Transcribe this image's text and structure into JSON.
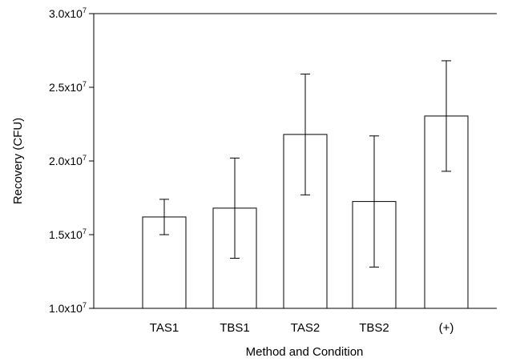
{
  "chart_data": {
    "type": "bar",
    "xlabel": "Method and Condition",
    "ylabel": "Recovery (CFU)",
    "ylim": [
      10000000,
      30000000
    ],
    "yticks": [
      {
        "value": 10000000,
        "mantissa": "1.0x10",
        "exp": "7"
      },
      {
        "value": 15000000,
        "mantissa": "1.5x10",
        "exp": "7"
      },
      {
        "value": 20000000,
        "mantissa": "2.0x10",
        "exp": "7"
      },
      {
        "value": 25000000,
        "mantissa": "2.5x10",
        "exp": "7"
      },
      {
        "value": 30000000,
        "mantissa": "3.0x10",
        "exp": "7"
      }
    ],
    "categories": [
      "TAS1",
      "TBS1",
      "TAS2",
      "TBS2",
      "(+)"
    ],
    "values": [
      16200000,
      16800000,
      21800000,
      17250000,
      23050000
    ],
    "errors": [
      1200000,
      3400000,
      4100000,
      4450000,
      3750000
    ],
    "grid": false,
    "legend": "none"
  }
}
